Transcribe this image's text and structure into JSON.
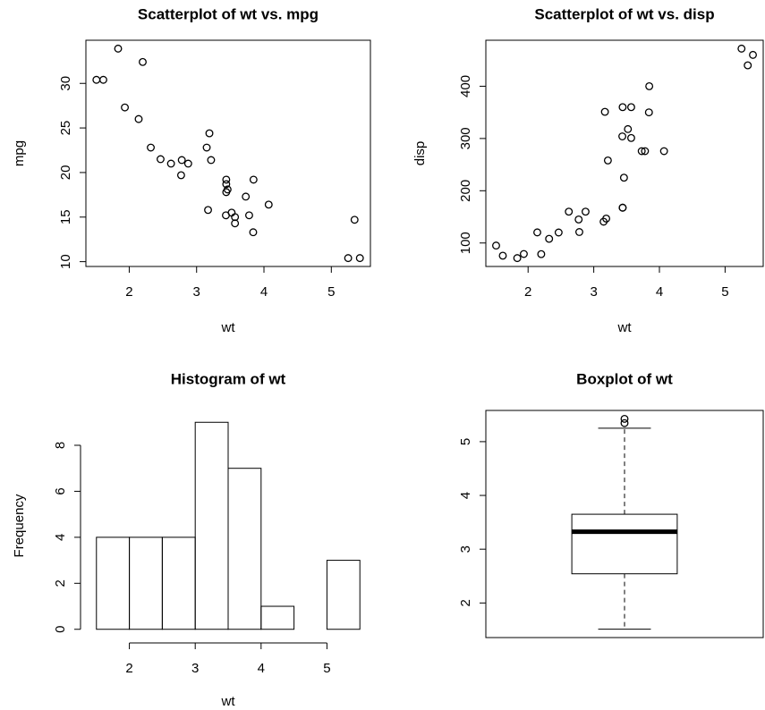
{
  "chart_data": [
    {
      "type": "scatter",
      "title": "Scatterplot of wt vs. mpg",
      "xlabel": "wt",
      "ylabel": "mpg",
      "x": [
        2.62,
        2.875,
        2.32,
        3.215,
        3.44,
        3.46,
        3.57,
        3.19,
        3.15,
        3.44,
        3.44,
        4.07,
        3.73,
        3.78,
        5.25,
        5.424,
        5.345,
        2.2,
        1.615,
        1.835,
        2.465,
        3.52,
        3.435,
        3.84,
        3.845,
        1.935,
        2.14,
        1.513,
        3.17,
        2.77,
        3.57,
        2.78
      ],
      "values": [
        21.0,
        21.0,
        22.8,
        21.4,
        18.7,
        18.1,
        14.3,
        24.4,
        22.8,
        19.2,
        17.8,
        16.4,
        17.3,
        15.2,
        10.4,
        10.4,
        14.7,
        32.4,
        30.4,
        33.9,
        21.5,
        15.5,
        15.2,
        13.3,
        19.2,
        27.3,
        26.0,
        30.4,
        15.8,
        19.7,
        15.0,
        21.4
      ],
      "xlim": [
        1.3566,
        5.5804
      ],
      "ylim": [
        9.46,
        34.84
      ],
      "xticks": [
        2,
        3,
        4,
        5
      ],
      "yticks": [
        10,
        15,
        20,
        25,
        30
      ]
    },
    {
      "type": "scatter",
      "title": "Scatterplot of wt vs. disp",
      "xlabel": "wt",
      "ylabel": "disp",
      "x": [
        2.62,
        2.875,
        2.32,
        3.215,
        3.44,
        3.46,
        3.57,
        3.19,
        3.15,
        3.44,
        3.44,
        4.07,
        3.73,
        3.78,
        5.25,
        5.424,
        5.345,
        2.2,
        1.615,
        1.835,
        2.465,
        3.52,
        3.435,
        3.84,
        3.845,
        1.935,
        2.14,
        1.513,
        3.17,
        2.77,
        3.57,
        2.78
      ],
      "values": [
        160,
        160,
        108,
        258,
        360,
        225,
        360,
        146.7,
        140.8,
        167.6,
        167.6,
        275.8,
        275.8,
        275.8,
        472,
        460,
        440,
        78.7,
        75.7,
        71.1,
        120.1,
        318,
        304,
        350,
        400,
        79,
        120.3,
        95.1,
        351,
        145,
        301,
        121
      ],
      "xlim": [
        1.3566,
        5.5804
      ],
      "ylim": [
        55.064,
        488.036
      ],
      "xticks": [
        2,
        3,
        4,
        5
      ],
      "yticks": [
        100,
        200,
        300,
        400
      ]
    },
    {
      "type": "histogram",
      "title": "Histogram of wt",
      "xlabel": "wt",
      "ylabel": "Frequency",
      "bins": [
        1.5,
        2.0,
        2.5,
        3.0,
        3.5,
        4.0,
        4.5,
        5.0,
        5.5
      ],
      "values": [
        4,
        4,
        4,
        9,
        7,
        1,
        0,
        3
      ],
      "xlim": [
        1.34,
        5.66
      ],
      "ylim": [
        -0.36,
        9.36
      ],
      "xticks": [
        2,
        3,
        4,
        5
      ],
      "yticks": [
        0,
        2,
        4,
        6,
        8
      ]
    },
    {
      "type": "box",
      "title": "Boxplot of wt",
      "whisker_low": 1.513,
      "q1": 2.5425,
      "median": 3.325,
      "q3": 3.65,
      "whisker_high": 5.25,
      "outliers": [
        5.345,
        5.424
      ],
      "ylim": [
        1.3566,
        5.5804
      ],
      "yticks": [
        2,
        3,
        4,
        5
      ]
    }
  ]
}
